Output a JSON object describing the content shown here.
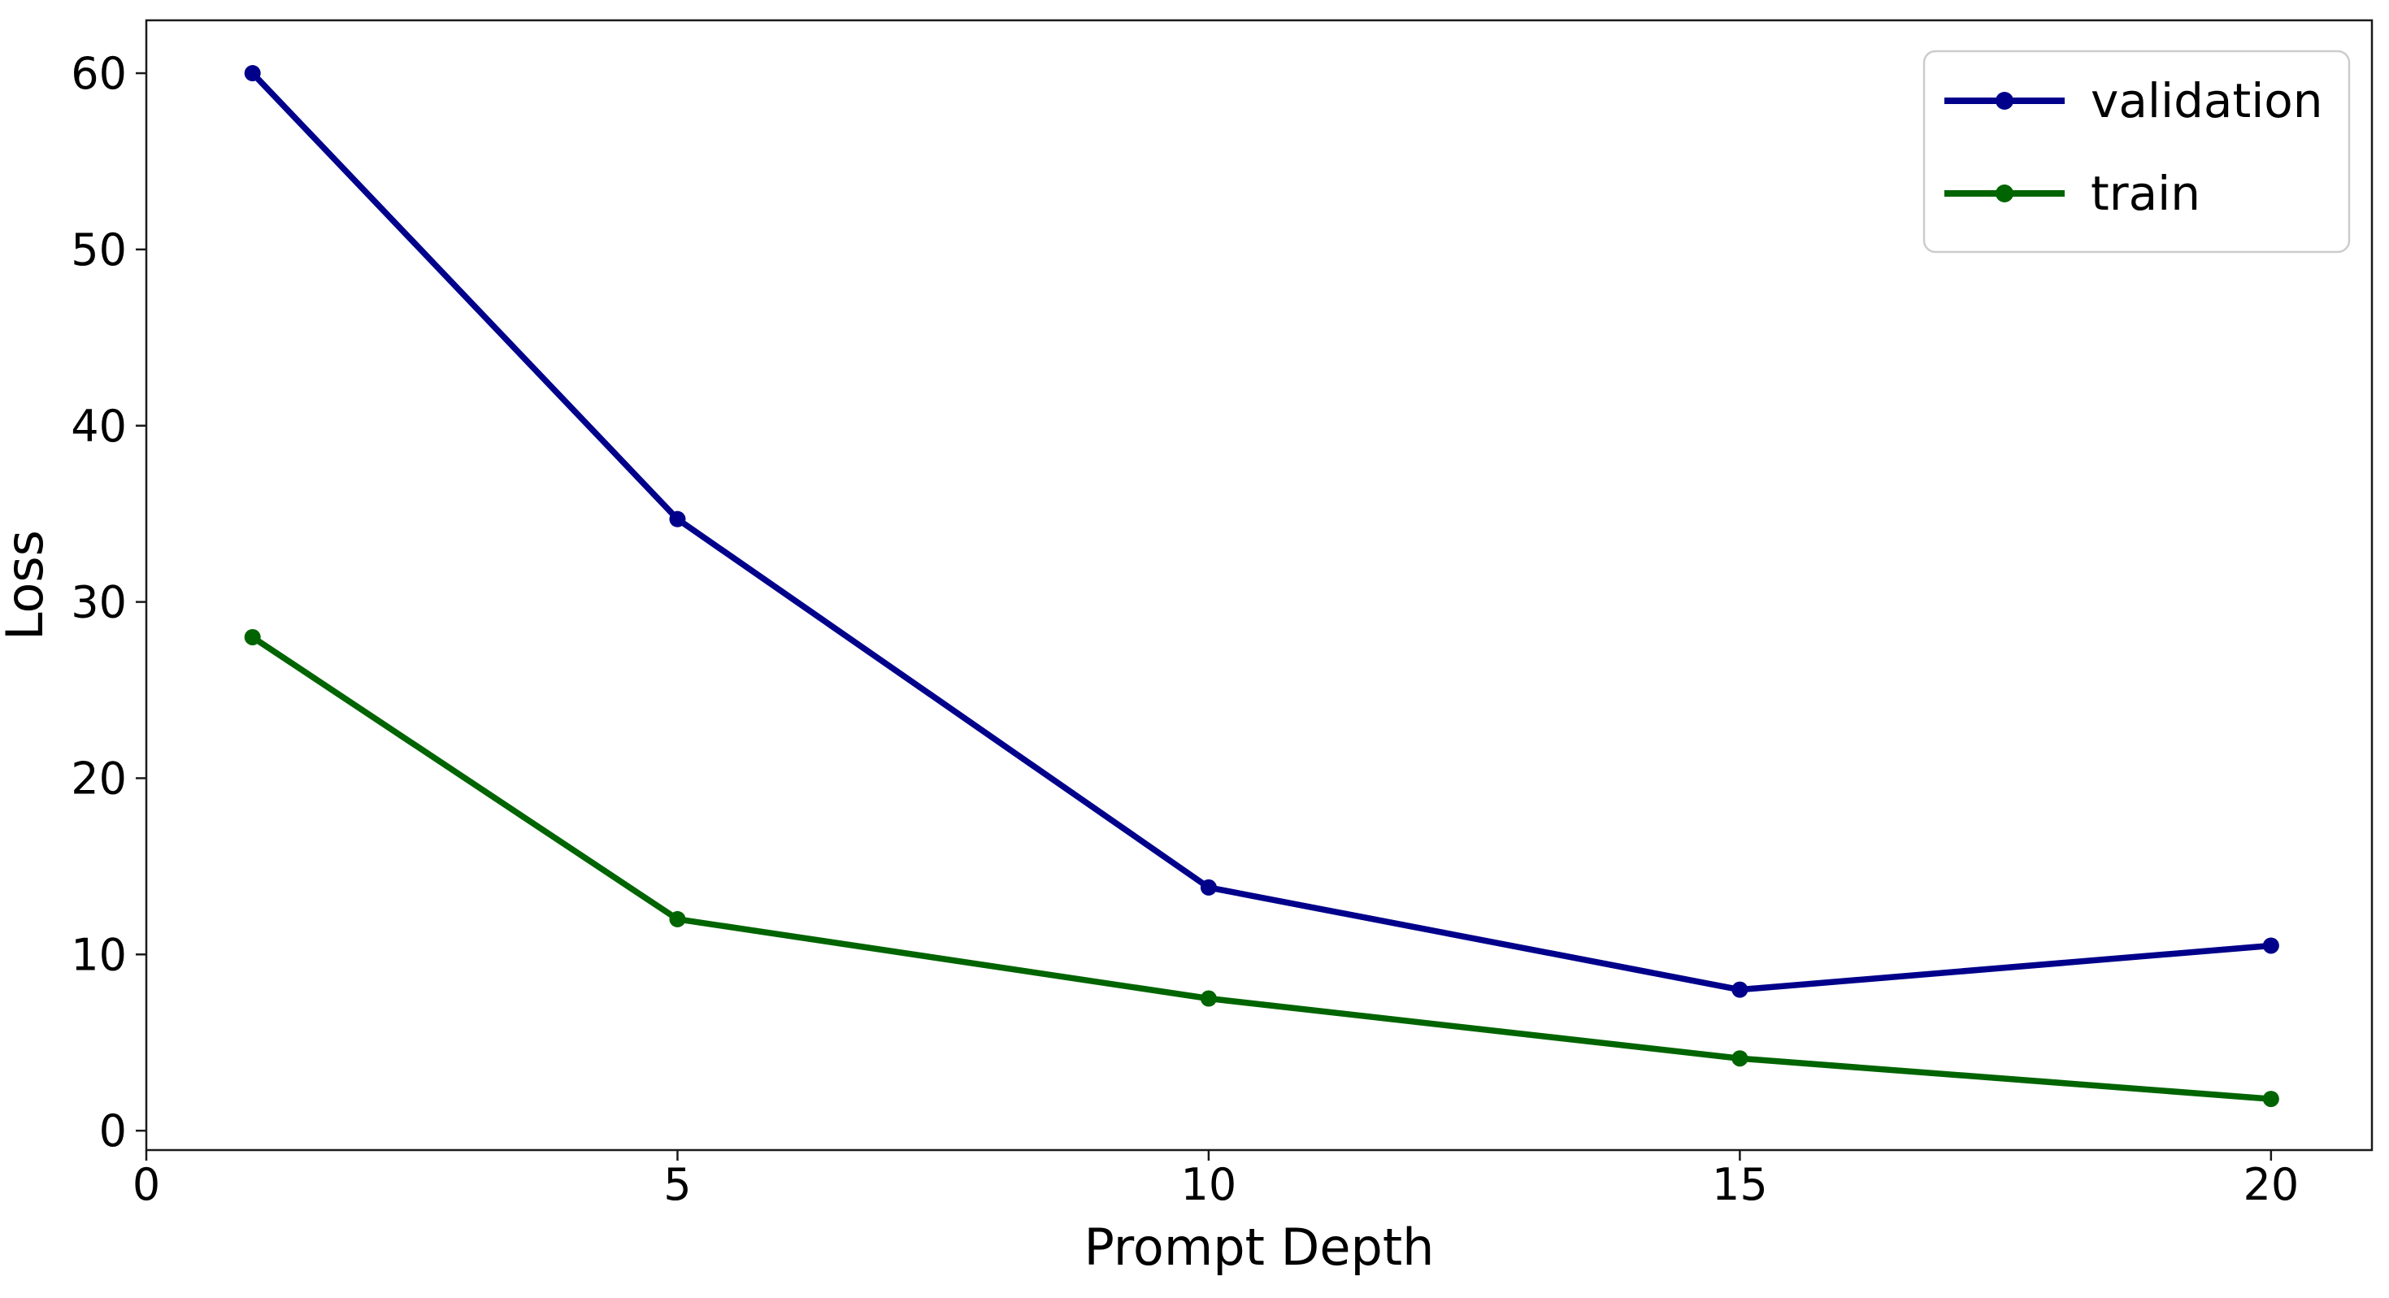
{
  "page": {
    "background": "#ffffff"
  },
  "chart_data": {
    "type": "line",
    "title": "",
    "xlabel": "Prompt Depth",
    "ylabel": "Loss",
    "x": [
      1,
      5,
      10,
      15,
      20
    ],
    "series": [
      {
        "name": "validation",
        "color": "#00008B",
        "values": [
          60.0,
          34.7,
          13.8,
          8.0,
          10.5
        ]
      },
      {
        "name": "train",
        "color": "#006400",
        "values": [
          28.0,
          12.0,
          7.5,
          4.1,
          1.8
        ]
      }
    ],
    "xlim": [
      0,
      20.95
    ],
    "ylim": [
      -1.1,
      63.0
    ],
    "x_ticks": [
      0,
      5,
      10,
      15,
      20
    ],
    "y_ticks": [
      0,
      10,
      20,
      30,
      40,
      50,
      60
    ],
    "grid": false,
    "marker": "circle",
    "legend_position": "upper right",
    "axis_color": "#1a1a1a",
    "text_color": "#000000",
    "legend_border_color": "#cccccc",
    "legend_background": "#ffffff"
  }
}
